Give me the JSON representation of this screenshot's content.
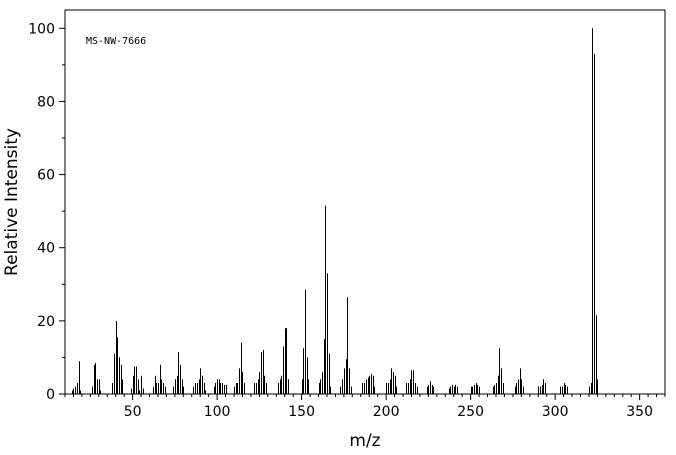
{
  "chart_data": {
    "type": "bar",
    "annotation": "MS-NW-7666",
    "xlabel": "m/z",
    "ylabel": "Relative Intensity",
    "xlim": [
      10,
      365
    ],
    "ylim": [
      0,
      105
    ],
    "x_ticks": [
      50,
      100,
      150,
      200,
      250,
      300,
      350
    ],
    "y_ticks": [
      0,
      20,
      40,
      60,
      80,
      100
    ],
    "grid": false,
    "peaks": [
      [
        14,
        1
      ],
      [
        15,
        1.5
      ],
      [
        16,
        2
      ],
      [
        17,
        3
      ],
      [
        18,
        9
      ],
      [
        19,
        1
      ],
      [
        26,
        2
      ],
      [
        27,
        8
      ],
      [
        28,
        8.5
      ],
      [
        29,
        4
      ],
      [
        30,
        4
      ],
      [
        31,
        1
      ],
      [
        38,
        3
      ],
      [
        39,
        11
      ],
      [
        40,
        20
      ],
      [
        41,
        15.5
      ],
      [
        42,
        10
      ],
      [
        43,
        8
      ],
      [
        44,
        4
      ],
      [
        49,
        1.5
      ],
      [
        50,
        5
      ],
      [
        51,
        7.5
      ],
      [
        52,
        7.5
      ],
      [
        53,
        4
      ],
      [
        54,
        1
      ],
      [
        55,
        5
      ],
      [
        56,
        1.5
      ],
      [
        62,
        2
      ],
      [
        63,
        5
      ],
      [
        64,
        3
      ],
      [
        65,
        3
      ],
      [
        66,
        8
      ],
      [
        67,
        4
      ],
      [
        68,
        3
      ],
      [
        69,
        2
      ],
      [
        74,
        2
      ],
      [
        75,
        4
      ],
      [
        76,
        5
      ],
      [
        77,
        11.5
      ],
      [
        78,
        8
      ],
      [
        79,
        4
      ],
      [
        80,
        2
      ],
      [
        86,
        2
      ],
      [
        87,
        3
      ],
      [
        88,
        3
      ],
      [
        89,
        4
      ],
      [
        90,
        7
      ],
      [
        91,
        5
      ],
      [
        92,
        3
      ],
      [
        93,
        1
      ],
      [
        98,
        2
      ],
      [
        99,
        3
      ],
      [
        100,
        4
      ],
      [
        101,
        4
      ],
      [
        102,
        3
      ],
      [
        103,
        3
      ],
      [
        104,
        2.5
      ],
      [
        105,
        2.5
      ],
      [
        110,
        2
      ],
      [
        111,
        3
      ],
      [
        112,
        3
      ],
      [
        113,
        7
      ],
      [
        114,
        14
      ],
      [
        115,
        6
      ],
      [
        116,
        3
      ],
      [
        122,
        3
      ],
      [
        123,
        3
      ],
      [
        124,
        4
      ],
      [
        125,
        6
      ],
      [
        126,
        11.5
      ],
      [
        127,
        12
      ],
      [
        128,
        5
      ],
      [
        129,
        3
      ],
      [
        136,
        3
      ],
      [
        137,
        4
      ],
      [
        138,
        5
      ],
      [
        139,
        13
      ],
      [
        140,
        18
      ],
      [
        141,
        18
      ],
      [
        142,
        4
      ],
      [
        150,
        4
      ],
      [
        151,
        12.5
      ],
      [
        152,
        28.5
      ],
      [
        153,
        10
      ],
      [
        154,
        4
      ],
      [
        160,
        3
      ],
      [
        161,
        4
      ],
      [
        162,
        6
      ],
      [
        163,
        15
      ],
      [
        164,
        51.5
      ],
      [
        165,
        33
      ],
      [
        166,
        11
      ],
      [
        167,
        2
      ],
      [
        173,
        2
      ],
      [
        174,
        4
      ],
      [
        175,
        7
      ],
      [
        176,
        9.5
      ],
      [
        177,
        26.5
      ],
      [
        178,
        7
      ],
      [
        179,
        2
      ],
      [
        186,
        3
      ],
      [
        187,
        3
      ],
      [
        188,
        4
      ],
      [
        189,
        4.5
      ],
      [
        190,
        5
      ],
      [
        191,
        5.5
      ],
      [
        192,
        5
      ],
      [
        193,
        2
      ],
      [
        200,
        3
      ],
      [
        201,
        3
      ],
      [
        202,
        4
      ],
      [
        203,
        7
      ],
      [
        204,
        6
      ],
      [
        205,
        5
      ],
      [
        206,
        2
      ],
      [
        212,
        3
      ],
      [
        213,
        3
      ],
      [
        214,
        4
      ],
      [
        215,
        6.5
      ],
      [
        216,
        6.5
      ],
      [
        217,
        3
      ],
      [
        218,
        2
      ],
      [
        224,
        2
      ],
      [
        225,
        2.5
      ],
      [
        226,
        3.5
      ],
      [
        227,
        2.5
      ],
      [
        228,
        2
      ],
      [
        237,
        1.5
      ],
      [
        238,
        2
      ],
      [
        239,
        2.5
      ],
      [
        240,
        2
      ],
      [
        241,
        2.5
      ],
      [
        242,
        2
      ],
      [
        250,
        2
      ],
      [
        251,
        2
      ],
      [
        252,
        2.5
      ],
      [
        253,
        3
      ],
      [
        254,
        2.5
      ],
      [
        255,
        2
      ],
      [
        263,
        2
      ],
      [
        264,
        2.5
      ],
      [
        265,
        3
      ],
      [
        266,
        5
      ],
      [
        267,
        12.5
      ],
      [
        268,
        7
      ],
      [
        269,
        3
      ],
      [
        276,
        2
      ],
      [
        277,
        3
      ],
      [
        278,
        4
      ],
      [
        279,
        7
      ],
      [
        280,
        4
      ],
      [
        281,
        2
      ],
      [
        290,
        2
      ],
      [
        291,
        2
      ],
      [
        292,
        2.5
      ],
      [
        293,
        4
      ],
      [
        294,
        3
      ],
      [
        303,
        2
      ],
      [
        304,
        2
      ],
      [
        305,
        3
      ],
      [
        306,
        2.5
      ],
      [
        307,
        2
      ],
      [
        320,
        2
      ],
      [
        321,
        3
      ],
      [
        322,
        100
      ],
      [
        323,
        93
      ],
      [
        324,
        21.5
      ],
      [
        325,
        4
      ]
    ]
  }
}
